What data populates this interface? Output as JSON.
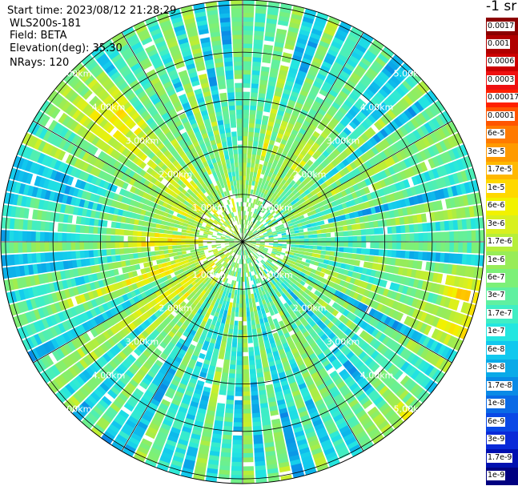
{
  "header": {
    "start_time": "Start time: 2023/08/12 21:28:29",
    "instrument": "WLS200s-181",
    "field": "Field: BETA",
    "elevation": "Elevation(deg): 35.30",
    "nrays": "NRays: 120"
  },
  "colorbar": {
    "unit_label": "-1 sr",
    "tick_labels": [
      "0.0017",
      "0.001",
      "0.0006",
      "0.0003",
      "0.00017",
      "0.0001",
      "6e-5",
      "3e-5",
      "1.7e-5",
      "1e-5",
      "6e-6",
      "3e-6",
      "1.7e-6",
      "1e-6",
      "6e-7",
      "3e-7",
      "1.7e-7",
      "1e-7",
      "6e-8",
      "3e-8",
      "1.7e-8",
      "1e-8",
      "6e-9",
      "3e-9",
      "1.7e-9",
      "1e-9"
    ],
    "colors": [
      "#8b0000",
      "#b00000",
      "#cc0000",
      "#ee1010",
      "#ff2000",
      "#ff5500",
      "#ff7a00",
      "#ff9a00",
      "#ffb800",
      "#ffd800",
      "#f2f200",
      "#d8f020",
      "#b6ee3a",
      "#98ec58",
      "#7cf078",
      "#60f0a0",
      "#40eec4",
      "#24e6e0",
      "#12c8ee",
      "#0aaae8",
      "#0a8ae6",
      "#0a6ae6",
      "#0a48e6",
      "#0a2ad8",
      "#0010b0",
      "#000080"
    ]
  },
  "chart_data": {
    "type": "heatmap",
    "projection": "polar-ppi",
    "field": "BETA",
    "unit": "-1 sr",
    "elevation_deg": 35.3,
    "nrays": 120,
    "max_range_km": 5.1,
    "range_ring_labels": [
      "1.00km",
      "2.00km",
      "3.00km",
      "4.00km",
      "5.00km"
    ],
    "range_rings_km": [
      1,
      2,
      3,
      4,
      5
    ],
    "spoke_angles_deg": [
      0,
      30,
      60,
      90,
      120,
      150,
      180,
      210,
      240,
      270,
      300,
      330
    ],
    "color_scale": "log",
    "value_range": [
      1e-09,
      0.0017
    ],
    "dominant_value_range": [
      3e-09,
      1.7e-07
    ]
  }
}
